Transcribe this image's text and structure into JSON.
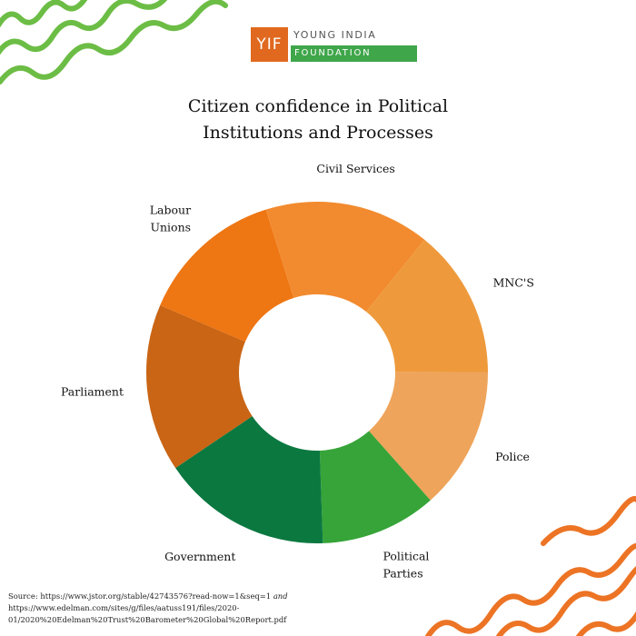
{
  "logo": {
    "mark": "YIF",
    "name_top": "YOUNG INDIA",
    "name_bottom": "FOUNDATION"
  },
  "title_lines": [
    "Citizen confidence in Political",
    "Institutions and Processes"
  ],
  "chart_data": {
    "type": "pie",
    "donut": true,
    "title": "Citizen confidence in Political Institutions and Processes",
    "categories": [
      "Parliament",
      "Labour Unions",
      "Civil Services",
      "MNC'S",
      "Police",
      "Political Parties",
      "Government"
    ],
    "values": [
      15.3,
      13.2,
      15.1,
      13.6,
      13.0,
      10.6,
      15.5
    ],
    "colors": [
      "#c96515",
      "#ee7613",
      "#f28b2f",
      "#ee9a3c",
      "#eea45a",
      "#36a438",
      "#0b7840"
    ],
    "label_lines": [
      [
        "Parliament"
      ],
      [
        "Labour",
        "Unions"
      ],
      [
        "Civil Services"
      ],
      [
        "MNC'S"
      ],
      [
        "Police"
      ],
      [
        "Political",
        "Parties"
      ],
      [
        "Government"
      ]
    ]
  },
  "source": {
    "prefix": "Source:",
    "line1": "https://www.jstor.org/stable/42743576?read-now=1&seq=1",
    "line1_suffix": "and",
    "line2": "https://www.edelman.com/sites/g/files/aatuss191/files/2020-",
    "line3": "01/2020%20Edelman%20Trust%20Barometer%20Global%20Report.pdf"
  },
  "decor_colors": {
    "green": "#6cbd45",
    "orange": "#ec7424"
  }
}
